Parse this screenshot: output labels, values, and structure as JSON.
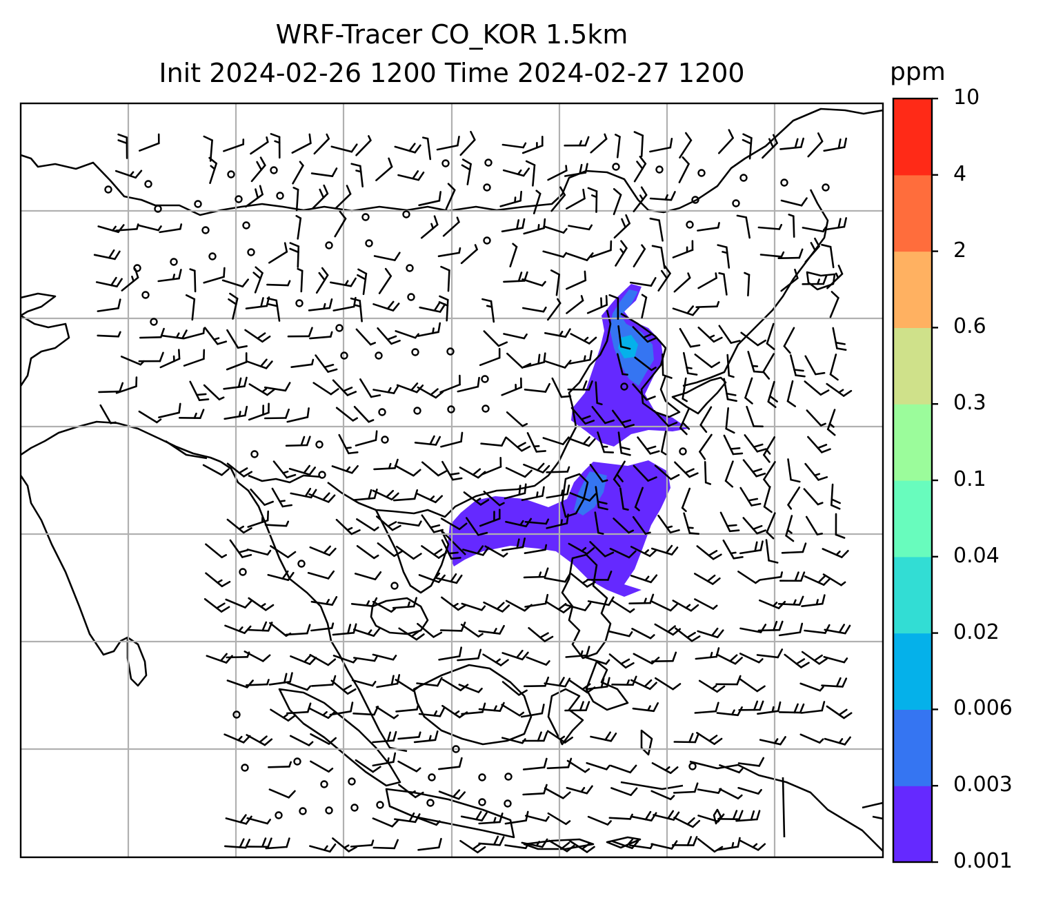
{
  "title": {
    "line1": "WRF-Tracer CO_KOR 1.5km",
    "line2": "Init 2024-02-26 1200 Time 2024-02-27 1200"
  },
  "colorbar": {
    "unit": "ppm",
    "ticks": [
      "0.001",
      "0.003",
      "0.006",
      "0.02",
      "0.04",
      "0.1",
      "0.3",
      "0.6",
      "2",
      "4",
      "10"
    ],
    "colors": [
      "#6529ff",
      "#3575f2",
      "#05b1ea",
      "#32ddd4",
      "#68fcbd",
      "#9bfc9b",
      "#cfe18a",
      "#ffb161",
      "#ff6d3c",
      "#ff2a17"
    ]
  },
  "map": {
    "frame_color": "#000000",
    "gridline_color": "#b0b0b0",
    "coastline_color": "#000000",
    "field_color_main": "#6529ff",
    "field_color_secondary": "#3575f2",
    "field_color_tertiary": "#05b1ea",
    "wind_symbol": "wind-barb"
  }
}
